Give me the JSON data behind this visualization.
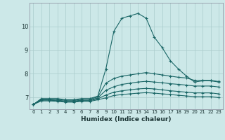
{
  "xlabel": "Humidex (Indice chaleur)",
  "ylabel": "",
  "background_color": "#cce8e8",
  "grid_color": "#aacccc",
  "line_color": "#1a6666",
  "xlim": [
    -0.5,
    23.5
  ],
  "ylim": [
    6.5,
    11.0
  ],
  "yticks": [
    7,
    8,
    9,
    10
  ],
  "xticks": [
    0,
    1,
    2,
    3,
    4,
    5,
    6,
    7,
    8,
    9,
    10,
    11,
    12,
    13,
    14,
    15,
    16,
    17,
    18,
    19,
    20,
    21,
    22,
    23
  ],
  "series": [
    {
      "x": [
        0,
        1,
        2,
        3,
        4,
        5,
        6,
        7,
        8,
        9,
        10,
        11,
        12,
        13,
        14,
        15,
        16,
        17,
        18,
        19,
        20,
        21,
        22,
        23
      ],
      "y": [
        6.7,
        6.95,
        6.95,
        6.95,
        6.9,
        6.9,
        6.95,
        6.95,
        7.05,
        8.2,
        9.8,
        10.35,
        10.45,
        10.55,
        10.35,
        9.55,
        9.1,
        8.55,
        8.2,
        7.9,
        7.65,
        7.7,
        7.7,
        7.65
      ]
    },
    {
      "x": [
        0,
        1,
        2,
        3,
        4,
        5,
        6,
        7,
        8,
        9,
        10,
        11,
        12,
        13,
        14,
        15,
        16,
        17,
        18,
        19,
        20,
        21,
        22,
        23
      ],
      "y": [
        6.7,
        6.92,
        6.92,
        6.92,
        6.88,
        6.88,
        6.92,
        6.92,
        7.02,
        7.6,
        7.8,
        7.9,
        7.95,
        8.0,
        8.05,
        8.0,
        7.95,
        7.9,
        7.85,
        7.82,
        7.72,
        7.72,
        7.72,
        7.67
      ]
    },
    {
      "x": [
        0,
        1,
        2,
        3,
        4,
        5,
        6,
        7,
        8,
        9,
        10,
        11,
        12,
        13,
        14,
        15,
        16,
        17,
        18,
        19,
        20,
        21,
        22,
        23
      ],
      "y": [
        6.7,
        6.9,
        6.9,
        6.88,
        6.85,
        6.85,
        6.88,
        6.88,
        6.98,
        7.3,
        7.45,
        7.55,
        7.6,
        7.65,
        7.68,
        7.65,
        7.62,
        7.58,
        7.55,
        7.52,
        7.48,
        7.48,
        7.48,
        7.44
      ]
    },
    {
      "x": [
        0,
        1,
        2,
        3,
        4,
        5,
        6,
        7,
        8,
        9,
        10,
        11,
        12,
        13,
        14,
        15,
        16,
        17,
        18,
        19,
        20,
        21,
        22,
        23
      ],
      "y": [
        6.7,
        6.88,
        6.88,
        6.86,
        6.82,
        6.82,
        6.86,
        6.86,
        6.94,
        7.1,
        7.22,
        7.28,
        7.32,
        7.36,
        7.38,
        7.36,
        7.32,
        7.28,
        7.25,
        7.22,
        7.19,
        7.19,
        7.19,
        7.15
      ]
    },
    {
      "x": [
        0,
        1,
        2,
        3,
        4,
        5,
        6,
        7,
        8,
        9,
        10,
        11,
        12,
        13,
        14,
        15,
        16,
        17,
        18,
        19,
        20,
        21,
        22,
        23
      ],
      "y": [
        6.7,
        6.85,
        6.85,
        6.83,
        6.8,
        6.8,
        6.83,
        6.83,
        6.9,
        6.98,
        7.08,
        7.12,
        7.15,
        7.18,
        7.2,
        7.18,
        7.15,
        7.12,
        7.09,
        7.06,
        7.03,
        7.03,
        7.03,
        6.99
      ]
    }
  ]
}
